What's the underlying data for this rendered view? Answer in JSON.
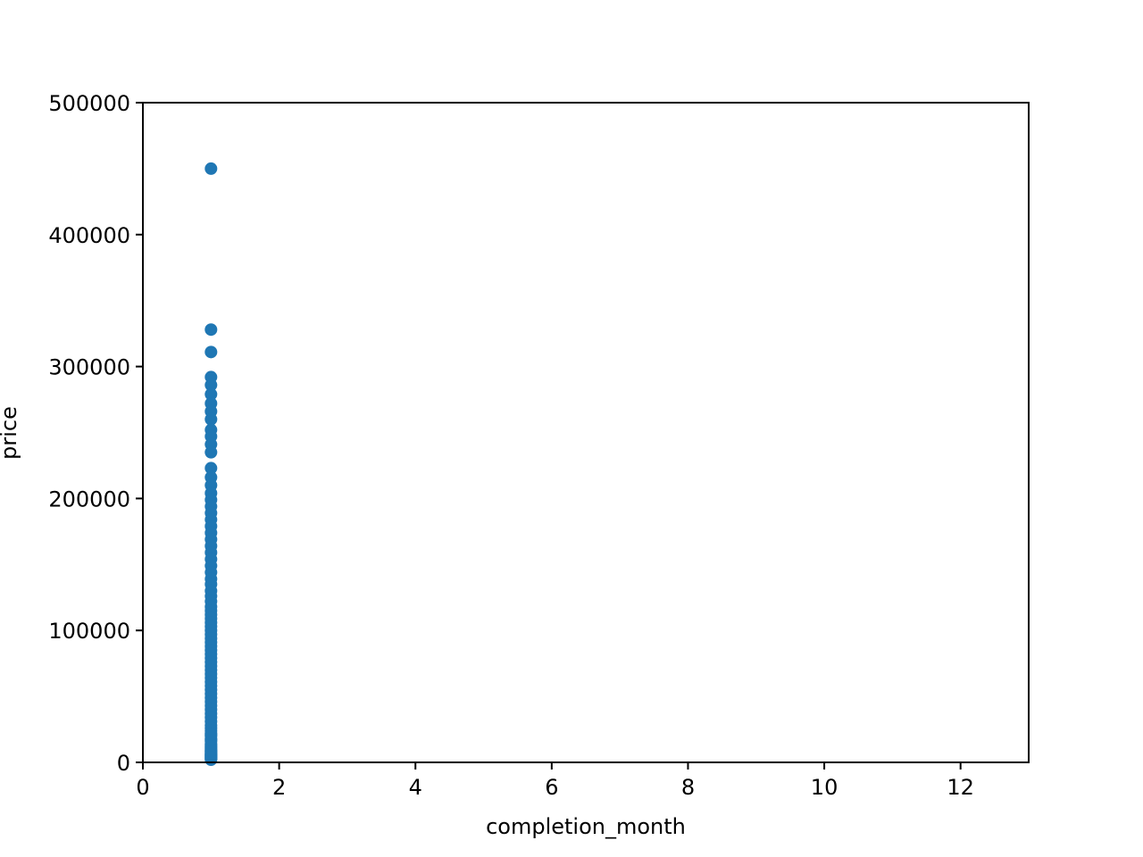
{
  "chart_data": {
    "type": "scatter",
    "title": "",
    "xlabel": "completion_month",
    "ylabel": "price",
    "xlim": [
      0,
      13
    ],
    "ylim": [
      0,
      500000
    ],
    "xticks": [
      0,
      2,
      4,
      6,
      8,
      10,
      12
    ],
    "yticks": [
      0,
      100000,
      200000,
      300000,
      400000,
      500000
    ],
    "xtick_labels": [
      "0",
      "2",
      "4",
      "6",
      "8",
      "10",
      "12"
    ],
    "ytick_labels": [
      "0",
      "100000",
      "200000",
      "300000",
      "400000",
      "500000"
    ],
    "grid": false,
    "legend": "none",
    "color": "#1f77b4",
    "series": [
      {
        "x": [
          1,
          1,
          1,
          1,
          1,
          1,
          1,
          1,
          1,
          1,
          1,
          1,
          1,
          1,
          1,
          1,
          1,
          1,
          1,
          1,
          1,
          1,
          1,
          1,
          1,
          1,
          1,
          1,
          1,
          1,
          1,
          1,
          1,
          1,
          1,
          1,
          1,
          1,
          1,
          1,
          1,
          1,
          1,
          1,
          1,
          1,
          1,
          1,
          1,
          1,
          1,
          1,
          1,
          1,
          1,
          1,
          1,
          1,
          1,
          1,
          1,
          1,
          1,
          1,
          1,
          1,
          1,
          1,
          1,
          1,
          1,
          1,
          1,
          1,
          1,
          1,
          1,
          1,
          1,
          1,
          1,
          1,
          1,
          1,
          1,
          1,
          1,
          1,
          1,
          1,
          1,
          1
        ],
        "y": [
          450000,
          328000,
          311000,
          292000,
          286000,
          279000,
          272000,
          266000,
          260000,
          252000,
          247000,
          241000,
          235000,
          223000,
          216000,
          210000,
          204000,
          199000,
          194000,
          189000,
          184000,
          179000,
          174000,
          169000,
          164000,
          159000,
          154000,
          149000,
          144000,
          139000,
          135000,
          130000,
          126000,
          122000,
          118000,
          115000,
          112000,
          109000,
          106000,
          103000,
          100000,
          97000,
          94000,
          91000,
          88000,
          85000,
          82000,
          79000,
          76000,
          73000,
          70000,
          67000,
          64000,
          61000,
          58000,
          55000,
          52000,
          49000,
          46000,
          43000,
          40000,
          37000,
          34000,
          31000,
          28000,
          26000,
          24000,
          22000,
          20000,
          18000,
          16000,
          14000,
          12000,
          11000,
          10000,
          9000,
          8000,
          7000,
          6500,
          6000,
          5500,
          5000,
          4500,
          4000,
          3500,
          3000,
          2500,
          2000,
          8500,
          13000,
          17000,
          21000
        ]
      }
    ]
  }
}
